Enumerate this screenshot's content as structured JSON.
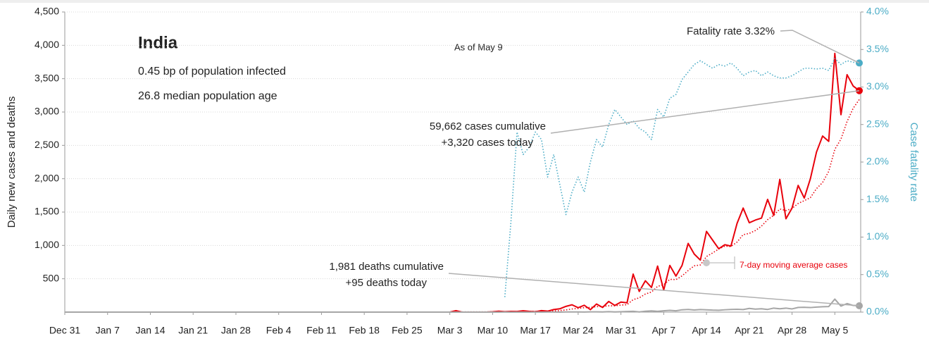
{
  "chart_data": {
    "type": "line",
    "title": "India",
    "subtitle": [
      "0.45 bp of population infected",
      "26.8 median population age"
    ],
    "date_note": "As of May 9",
    "ylabel": "Daily new cases and deaths",
    "y2label": "Case fatality rate",
    "annotations": {
      "fatality": "Fatality rate 3.32%",
      "cases": [
        "59,662 cases cumulative",
        "+3,320 cases today"
      ],
      "deaths": [
        "1,981 deaths cumulative",
        "+95 deaths today"
      ],
      "average": "7-day moving average cases"
    },
    "categories": [
      "Dec 31",
      "Jan 1",
      "Jan 2",
      "Jan 3",
      "Jan 4",
      "Jan 5",
      "Jan 6",
      "Jan 7",
      "Jan 8",
      "Jan 9",
      "Jan 10",
      "Jan 11",
      "Jan 12",
      "Jan 13",
      "Jan 14",
      "Jan 15",
      "Jan 16",
      "Jan 17",
      "Jan 18",
      "Jan 19",
      "Jan 20",
      "Jan 21",
      "Jan 22",
      "Jan 23",
      "Jan 24",
      "Jan 25",
      "Jan 26",
      "Jan 27",
      "Jan 28",
      "Jan 29",
      "Jan 30",
      "Jan 31",
      "Feb 1",
      "Feb 2",
      "Feb 3",
      "Feb 4",
      "Feb 5",
      "Feb 6",
      "Feb 7",
      "Feb 8",
      "Feb 9",
      "Feb 10",
      "Feb 11",
      "Feb 12",
      "Feb 13",
      "Feb 14",
      "Feb 15",
      "Feb 16",
      "Feb 17",
      "Feb 18",
      "Feb 19",
      "Feb 20",
      "Feb 21",
      "Feb 22",
      "Feb 23",
      "Feb 24",
      "Feb 25",
      "Feb 26",
      "Feb 27",
      "Feb 28",
      "Feb 29",
      "Mar 1",
      "Mar 2",
      "Mar 3",
      "Mar 4",
      "Mar 5",
      "Mar 6",
      "Mar 7",
      "Mar 8",
      "Mar 9",
      "Mar 10",
      "Mar 11",
      "Mar 12",
      "Mar 13",
      "Mar 14",
      "Mar 15",
      "Mar 16",
      "Mar 17",
      "Mar 18",
      "Mar 19",
      "Mar 20",
      "Mar 21",
      "Mar 22",
      "Mar 23",
      "Mar 24",
      "Mar 25",
      "Mar 26",
      "Mar 27",
      "Mar 28",
      "Mar 29",
      "Mar 30",
      "Mar 31",
      "Apr 1",
      "Apr 2",
      "Apr 3",
      "Apr 4",
      "Apr 5",
      "Apr 6",
      "Apr 7",
      "Apr 8",
      "Apr 9",
      "Apr 10",
      "Apr 11",
      "Apr 12",
      "Apr 13",
      "Apr 14",
      "Apr 15",
      "Apr 16",
      "Apr 17",
      "Apr 18",
      "Apr 19",
      "Apr 20",
      "Apr 21",
      "Apr 22",
      "Apr 23",
      "Apr 24",
      "Apr 25",
      "Apr 26",
      "Apr 27",
      "Apr 28",
      "Apr 29",
      "Apr 30",
      "May 1",
      "May 2",
      "May 3",
      "May 4",
      "May 5",
      "May 6",
      "May 7",
      "May 8",
      "May 9"
    ],
    "xticks": [
      "Dec 31",
      "Jan 7",
      "Jan 14",
      "Jan 21",
      "Jan 28",
      "Feb 4",
      "Feb 11",
      "Feb 18",
      "Feb 25",
      "Mar 3",
      "Mar 10",
      "Mar 17",
      "Mar 24",
      "Mar 31",
      "Apr 7",
      "Apr 14",
      "Apr 21",
      "Apr 28",
      "May 5"
    ],
    "series": [
      {
        "name": "Daily new cases",
        "color": "#e8000b",
        "line_style": "solid",
        "end_marker": true,
        "values": [
          0,
          0,
          0,
          0,
          0,
          0,
          0,
          0,
          0,
          0,
          0,
          0,
          0,
          0,
          0,
          0,
          0,
          0,
          0,
          0,
          0,
          0,
          0,
          0,
          0,
          0,
          0,
          0,
          0,
          0,
          0,
          0,
          0,
          0,
          0,
          0,
          0,
          0,
          0,
          0,
          0,
          0,
          0,
          0,
          0,
          0,
          0,
          0,
          0,
          0,
          0,
          0,
          0,
          0,
          0,
          0,
          0,
          0,
          0,
          0,
          0,
          0,
          0,
          0,
          22,
          0,
          0,
          0,
          0,
          0,
          5,
          13,
          6,
          11,
          9,
          20,
          11,
          6,
          23,
          14,
          38,
          50,
          86,
          110,
          66,
          103,
          37,
          121,
          70,
          160,
          100,
          150,
          140,
          570,
          310,
          470,
          370,
          690,
          330,
          700,
          540,
          700,
          1030,
          870,
          780,
          1210,
          1080,
          950,
          1010,
          990,
          1330,
          1560,
          1340,
          1380,
          1410,
          1690,
          1450,
          1990,
          1400,
          1560,
          1900,
          1710,
          2000,
          2400,
          2640,
          2560,
          3880,
          2960,
          3560,
          3390,
          3320
        ]
      },
      {
        "name": "7-day moving average cases",
        "color": "#e8000b",
        "line_style": "dotted",
        "end_marker": false,
        "values": [
          0,
          0,
          0,
          0,
          0,
          0,
          0,
          0,
          0,
          0,
          0,
          0,
          0,
          0,
          0,
          0,
          0,
          0,
          0,
          0,
          0,
          0,
          0,
          0,
          0,
          0,
          0,
          0,
          0,
          0,
          0,
          0,
          0,
          0,
          0,
          0,
          0,
          0,
          0,
          0,
          0,
          0,
          0,
          0,
          0,
          0,
          0,
          0,
          0,
          0,
          0,
          0,
          0,
          0,
          0,
          0,
          0,
          0,
          0,
          0,
          0,
          0,
          0,
          0,
          3,
          3,
          3,
          3,
          3,
          3,
          4,
          3,
          3,
          5,
          6,
          9,
          11,
          11,
          12,
          13,
          17,
          23,
          33,
          47,
          55,
          67,
          70,
          82,
          85,
          95,
          94,
          106,
          111,
          187,
          214,
          271,
          301,
          386,
          411,
          491,
          487,
          543,
          623,
          694,
          707,
          833,
          887,
          946,
          990,
          984,
          1050,
          1161,
          1180,
          1223,
          1289,
          1386,
          1451,
          1546,
          1523,
          1554,
          1629,
          1671,
          1716,
          1851,
          1944,
          2110,
          2441,
          2593,
          2857,
          3056,
          3187
        ]
      },
      {
        "name": "Daily new deaths",
        "color": "#a6a6a6",
        "line_style": "solid",
        "end_marker": true,
        "values": [
          0,
          0,
          0,
          0,
          0,
          0,
          0,
          0,
          0,
          0,
          0,
          0,
          0,
          0,
          0,
          0,
          0,
          0,
          0,
          0,
          0,
          0,
          0,
          0,
          0,
          0,
          0,
          0,
          0,
          0,
          0,
          0,
          0,
          0,
          0,
          0,
          0,
          0,
          0,
          0,
          0,
          0,
          0,
          0,
          0,
          0,
          0,
          0,
          0,
          0,
          0,
          0,
          0,
          0,
          0,
          0,
          0,
          0,
          0,
          0,
          0,
          0,
          0,
          0,
          0,
          0,
          0,
          0,
          0,
          0,
          0,
          0,
          1,
          0,
          0,
          0,
          0,
          1,
          0,
          1,
          1,
          0,
          2,
          3,
          3,
          1,
          4,
          4,
          3,
          6,
          2,
          5,
          9,
          12,
          3,
          13,
          18,
          12,
          20,
          26,
          20,
          35,
          40,
          32,
          38,
          35,
          30,
          28,
          35,
          40,
          42,
          38,
          55,
          45,
          50,
          40,
          60,
          50,
          60,
          48,
          70,
          72,
          68,
          75,
          80,
          83,
          195,
          90,
          128,
          100,
          95
        ]
      },
      {
        "name": "Case fatality rate",
        "color": "#4bacc6",
        "line_style": "dotted",
        "end_marker": true,
        "axis": "y2",
        "values": [
          null,
          null,
          null,
          null,
          null,
          null,
          null,
          null,
          null,
          null,
          null,
          null,
          null,
          null,
          null,
          null,
          null,
          null,
          null,
          null,
          null,
          null,
          null,
          null,
          null,
          null,
          null,
          null,
          null,
          null,
          null,
          null,
          null,
          null,
          null,
          null,
          null,
          null,
          null,
          null,
          null,
          null,
          null,
          null,
          null,
          null,
          null,
          null,
          null,
          null,
          null,
          null,
          null,
          null,
          null,
          null,
          null,
          null,
          null,
          null,
          null,
          null,
          null,
          null,
          null,
          null,
          null,
          null,
          null,
          null,
          null,
          null,
          0.2,
          1.2,
          2.4,
          2.1,
          2.2,
          2.4,
          2.3,
          1.8,
          2.1,
          1.7,
          1.3,
          1.6,
          1.8,
          1.6,
          2.0,
          2.3,
          2.2,
          2.5,
          2.7,
          2.6,
          2.5,
          2.55,
          2.45,
          2.4,
          2.3,
          2.7,
          2.6,
          2.85,
          2.9,
          3.1,
          3.2,
          3.3,
          3.35,
          3.3,
          3.25,
          3.3,
          3.28,
          3.32,
          3.25,
          3.15,
          3.2,
          3.22,
          3.15,
          3.2,
          3.15,
          3.12,
          3.12,
          3.15,
          3.2,
          3.25,
          3.25,
          3.24,
          3.25,
          3.22,
          3.38,
          3.3,
          3.35,
          3.33,
          3.32
        ]
      }
    ],
    "ylim": [
      0,
      4500
    ],
    "yticks": [
      500,
      {
        "value": 1000,
        "label": "1,000"
      },
      {
        "value": 1500,
        "label": "1,500"
      },
      {
        "value": 2000,
        "label": "2,000"
      },
      {
        "value": 2500,
        "label": "2,500"
      },
      {
        "value": 3000,
        "label": "3,000"
      },
      {
        "value": 3500,
        "label": "3,500"
      },
      {
        "value": 4000,
        "label": "4,000"
      },
      {
        "value": 4500,
        "label": "4,500"
      }
    ],
    "y2lim": [
      0,
      4
    ],
    "y2ticks": [
      {
        "value": 0,
        "label": "0.0%"
      },
      {
        "value": 0.5,
        "label": "0.5%"
      },
      {
        "value": 1,
        "label": "1.0%"
      },
      {
        "value": 1.5,
        "label": "1.5%"
      },
      {
        "value": 2,
        "label": "2.0%"
      },
      {
        "value": 2.5,
        "label": "2.5%"
      },
      {
        "value": 3,
        "label": "3.0%"
      },
      {
        "value": 3.5,
        "label": "3.5%"
      },
      {
        "value": 4,
        "label": "4.0%"
      }
    ],
    "y2color": "#4bacc6",
    "grid": true
  }
}
